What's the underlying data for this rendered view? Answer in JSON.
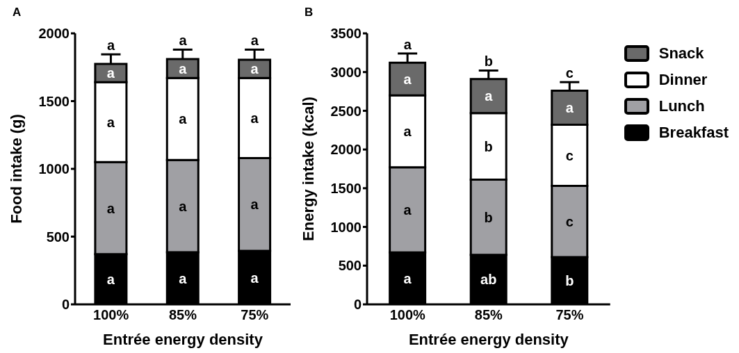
{
  "chart_data": [
    {
      "type": "bar",
      "title": "A",
      "xlabel": "Entrée energy density",
      "ylabel": "Food intake (g)",
      "categories": [
        "100%",
        "85%",
        "75%"
      ],
      "stacked": true,
      "ylim": [
        0,
        2000
      ],
      "yticks": [
        0,
        500,
        1000,
        1500,
        2000
      ],
      "series": [
        {
          "color": "#000000",
          "values": [
            370,
            385,
            395
          ],
          "value_labels": [
            "a",
            "a",
            "a"
          ]
        },
        {
          "color": "#a0a0a4",
          "values": [
            680,
            680,
            685
          ],
          "value_labels": [
            "a",
            "a",
            "a"
          ]
        },
        {
          "color": "#ffffff",
          "values": [
            590,
            605,
            590
          ],
          "value_labels": [
            "a",
            "a",
            "a"
          ]
        },
        {
          "color": "#6a6a6a",
          "values": [
            135,
            140,
            135
          ],
          "value_labels": [
            "a",
            "a",
            "a"
          ],
          "errors": [
            [
              1775,
              1845
            ],
            [
              1810,
              1880
            ],
            [
              1805,
              1880
            ]
          ]
        }
      ],
      "annotations": [
        {
          "text": "a",
          "x": "100%",
          "y": 1845
        },
        {
          "text": "a",
          "x": "85%",
          "y": 1880
        },
        {
          "text": "a",
          "x": "75%",
          "y": 1880
        }
      ]
    },
    {
      "type": "bar",
      "title": "B",
      "xlabel": "Entrée energy density",
      "ylabel": "Energy intake (kcal)",
      "categories": [
        "100%",
        "85%",
        "75%"
      ],
      "stacked": true,
      "ylim": [
        0,
        3500
      ],
      "yticks": [
        0,
        500,
        1000,
        1500,
        2000,
        2500,
        3000,
        3500
      ],
      "legend": "right",
      "series": [
        {
          "name": "Breakfast",
          "color": "#000000",
          "values": [
            670,
            640,
            610
          ],
          "value_labels": [
            "a",
            "ab",
            "b"
          ]
        },
        {
          "name": "Lunch",
          "color": "#a0a0a4",
          "values": [
            1100,
            970,
            920
          ],
          "value_labels": [
            "a",
            "b",
            "c"
          ]
        },
        {
          "name": "Dinner",
          "color": "#ffffff",
          "values": [
            930,
            860,
            790
          ],
          "value_labels": [
            "a",
            "b",
            "c"
          ]
        },
        {
          "name": "Snack",
          "color": "#6a6a6a",
          "values": [
            420,
            440,
            440
          ],
          "value_labels": [
            "a",
            "a",
            "a"
          ],
          "errors": [
            [
              3120,
              3240
            ],
            [
              2910,
              3020
            ],
            [
              2760,
              2870
            ]
          ]
        }
      ],
      "annotations": [
        {
          "text": "a",
          "x": "100%",
          "y": 3240
        },
        {
          "text": "b",
          "x": "85%",
          "y": 3020
        },
        {
          "text": "c",
          "x": "75%",
          "y": 2870
        }
      ]
    }
  ]
}
